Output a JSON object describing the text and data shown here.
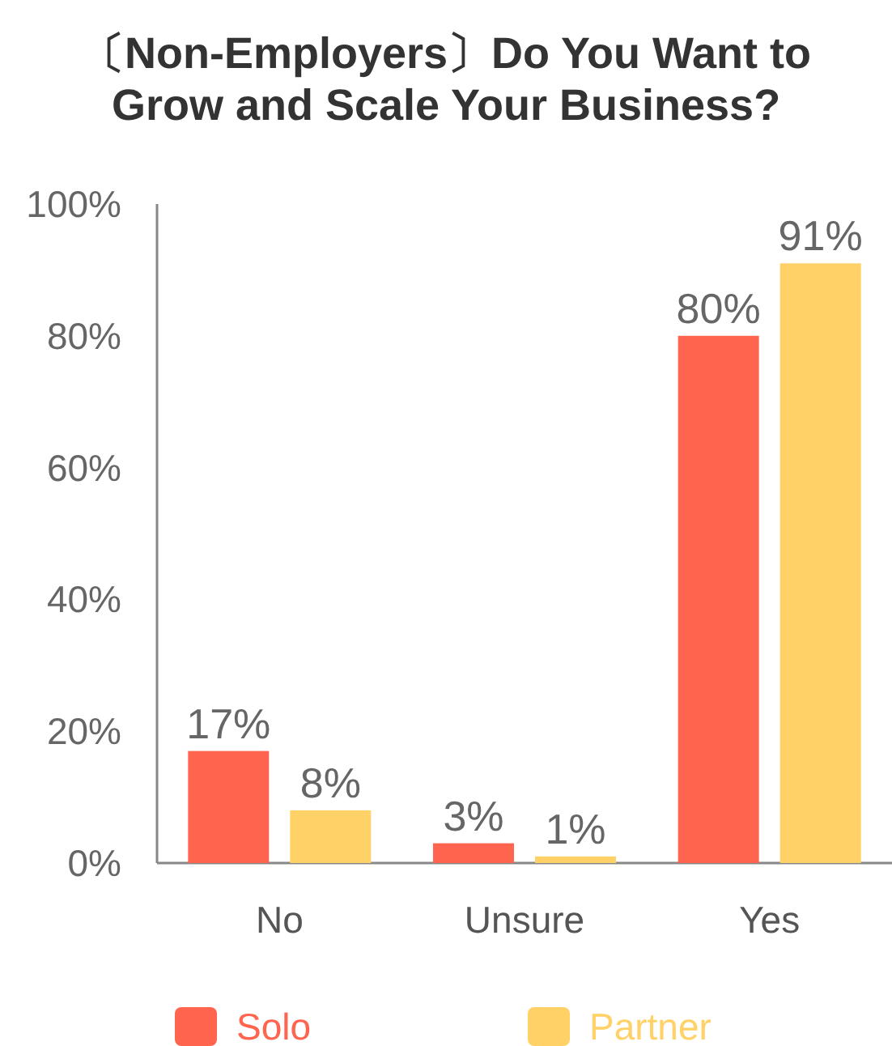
{
  "chart_data": {
    "type": "bar",
    "title": "〔Non-Employers〕Do You Want to\nGrow and Scale Your Business?",
    "categories": [
      "No",
      "Unsure",
      "Yes"
    ],
    "series": [
      {
        "name": "Solo",
        "color": "#ff644e",
        "values": [
          17,
          3,
          80
        ]
      },
      {
        "name": "Partner",
        "color": "#ffd166",
        "values": [
          8,
          1,
          91
        ]
      }
    ],
    "ylim": [
      0,
      100
    ],
    "yticks": [
      {
        "value": 0,
        "label": "0%"
      },
      {
        "value": 20,
        "label": "20%"
      },
      {
        "value": 40,
        "label": "40%"
      },
      {
        "value": 60,
        "label": "60%"
      },
      {
        "value": 80,
        "label": "80%"
      },
      {
        "value": 100,
        "label": "100%"
      }
    ],
    "value_labels": [
      [
        "17%",
        "3%",
        "80%"
      ],
      [
        "8%",
        "1%",
        "91%"
      ]
    ],
    "grid": false,
    "legend": "bottom"
  }
}
